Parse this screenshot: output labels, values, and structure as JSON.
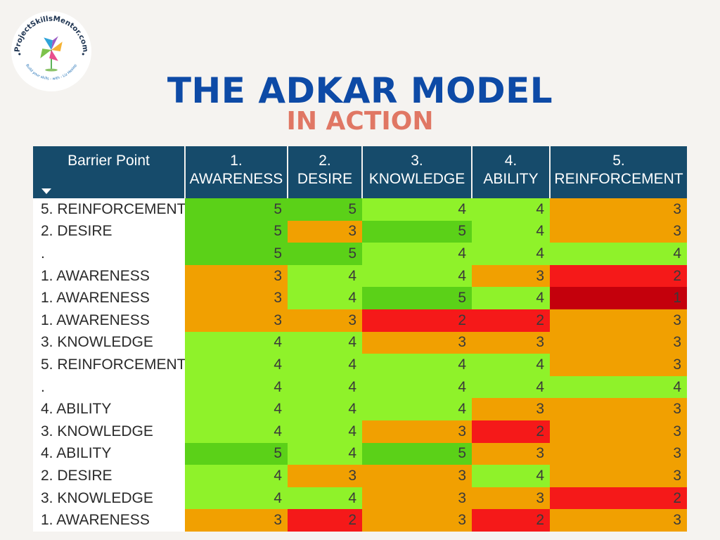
{
  "logo": {
    "top_text": "ProjectSkillsMentor.com",
    "bottom_text": "Build your skills - with - Liz Heslop",
    "icon": "pinwheel-icon"
  },
  "title": "THE ADKAR MODEL",
  "subtitle": "IN ACTION",
  "colors": {
    "title": "#0d4aa6",
    "subtitle": "#e07764",
    "header_bg": "#164b6b",
    "level_5": "#5bd118",
    "level_4": "#8ff22a",
    "level_3": "#f1a001",
    "level_2": "#f51919",
    "level_1": "#c4000c"
  },
  "table": {
    "barrier_header": "Barrier Point",
    "sort_icon": "sort-down-icon",
    "columns": [
      {
        "num": "1.",
        "name": "AWARENESS"
      },
      {
        "num": "2.",
        "name": "DESIRE"
      },
      {
        "num": "3.",
        "name": "KNOWLEDGE"
      },
      {
        "num": "4.",
        "name": "ABILITY"
      },
      {
        "num": "5.",
        "name": "REINFORCEMENT"
      }
    ],
    "rows": [
      {
        "label": "5. REINFORCEMENT",
        "values": [
          5,
          5,
          4,
          4,
          3
        ]
      },
      {
        "label": "2. DESIRE",
        "values": [
          5,
          3,
          5,
          4,
          3
        ]
      },
      {
        "label": ".",
        "values": [
          5,
          5,
          4,
          4,
          4
        ]
      },
      {
        "label": "1. AWARENESS",
        "values": [
          3,
          4,
          4,
          3,
          2
        ]
      },
      {
        "label": "1. AWARENESS",
        "values": [
          3,
          4,
          5,
          4,
          1
        ]
      },
      {
        "label": "1. AWARENESS",
        "values": [
          3,
          3,
          2,
          2,
          3
        ]
      },
      {
        "label": "3. KNOWLEDGE",
        "values": [
          4,
          4,
          3,
          3,
          3
        ]
      },
      {
        "label": "5. REINFORCEMENT",
        "values": [
          4,
          4,
          4,
          4,
          3
        ]
      },
      {
        "label": ".",
        "values": [
          4,
          4,
          4,
          4,
          4
        ]
      },
      {
        "label": "4. ABILITY",
        "values": [
          4,
          4,
          4,
          3,
          3
        ]
      },
      {
        "label": "3. KNOWLEDGE",
        "values": [
          4,
          4,
          3,
          2,
          3
        ]
      },
      {
        "label": "4. ABILITY",
        "values": [
          5,
          4,
          5,
          3,
          3
        ]
      },
      {
        "label": "2. DESIRE",
        "values": [
          4,
          3,
          3,
          4,
          3
        ]
      },
      {
        "label": "3. KNOWLEDGE",
        "values": [
          4,
          4,
          3,
          3,
          2
        ]
      },
      {
        "label": "1. AWARENESS",
        "values": [
          3,
          2,
          3,
          2,
          3
        ]
      }
    ]
  }
}
